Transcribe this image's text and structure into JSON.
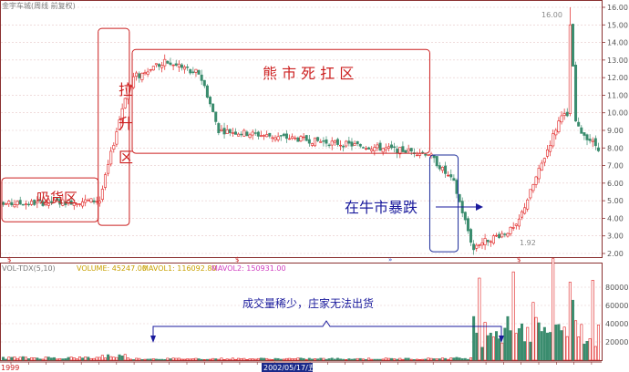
{
  "header": {
    "title": "金宇车城(周线 前复权)"
  },
  "volume_header": {
    "indicator": "VOL-TDX(5,10)",
    "volume": "VOLUME: 45247.00",
    "mavol1": "MAVOL1: 116092.80",
    "mavol2": "MAVOL2: 150931.00"
  },
  "annotations": {
    "accumulation": "吸货区",
    "lift": [
      "拉",
      "升",
      "区"
    ],
    "bear": "熊 市 死 扛 区",
    "crash": "在牛市暴跌",
    "volume_note": "成交量稀少，庄家无法出货",
    "peak_label": "16.00",
    "low_label": "1.92"
  },
  "bottom_axis": {
    "start_year": "1999",
    "date_box": "2002/05/17/五"
  },
  "colors": {
    "up": "#e02020",
    "down": "#3a8c6e",
    "box_red": "#cc2020",
    "box_blue": "#1c2c9a",
    "text_blue": "#1a1a9c",
    "vol_header_yellow": "#c8a000",
    "vol_header_pink": "#d040c0"
  },
  "chart_data": [
    {
      "type": "candlestick",
      "title": "金宇车城(周线 前复权)",
      "ylim": [
        2.0,
        16.0
      ],
      "y_ticks": [
        "2.00",
        "3.00",
        "4.00",
        "5.00",
        "6.00",
        "7.00",
        "8.00",
        "9.00",
        "10.00",
        "11.00",
        "12.00",
        "13.00",
        "14.00",
        "15.00",
        "16.00"
      ],
      "grid": true,
      "segments": [
        {
          "from_index": 0,
          "to_index": 33,
          "price_start": 4.8,
          "price_end": 5.0,
          "level": 4.8
        },
        {
          "from_index": 34,
          "to_index": 44,
          "price_start": 5.0,
          "price_end": 11.6,
          "level": 8.0
        },
        {
          "from_index": 45,
          "to_index": 75,
          "price_start": 11.5,
          "price_end": 10.8,
          "level": 12.0
        },
        {
          "from_index": 76,
          "to_index": 150,
          "price_start": 9.0,
          "price_end": 7.7,
          "level": 8.5
        },
        {
          "from_index": 151,
          "to_index": 158,
          "price_start": 7.5,
          "price_end": 6.2,
          "level": 7.0
        },
        {
          "from_index": 159,
          "to_index": 166,
          "price_start": 6.0,
          "price_end": 2.2,
          "level": 4.0
        },
        {
          "from_index": 167,
          "to_index": 180,
          "price_start": 2.5,
          "price_end": 3.4,
          "level": 3.0
        },
        {
          "from_index": 181,
          "to_index": 196,
          "price_start": 3.5,
          "price_end": 9.5,
          "level": 6.0
        },
        {
          "from_index": 197,
          "to_index": 210,
          "price_start": 10.0,
          "price_end": 8.0,
          "level": 10.0
        }
      ],
      "peak": {
        "value": 16.0,
        "index": 200
      },
      "low": {
        "value": 1.92,
        "index": 166
      },
      "boxes": [
        {
          "name": "吸货区",
          "x_from": 0,
          "x_to": 33,
          "y_from": 3.8,
          "y_to": 6.3
        },
        {
          "name": "拉升区",
          "x_from": 34,
          "x_to": 44,
          "y_from": 3.6,
          "y_to": 14.8
        },
        {
          "name": "熊市死扛区",
          "x_from": 46,
          "x_to": 150,
          "y_from": 7.7,
          "y_to": 13.6
        },
        {
          "name": "在牛市暴跌",
          "x_from": 151,
          "x_to": 160,
          "y_from": 2.1,
          "y_to": 7.6
        }
      ]
    },
    {
      "type": "bar",
      "title": "VOL-TDX(5,10)",
      "ylim": [
        0,
        95000
      ],
      "y_ticks": [
        "20000",
        "40000",
        "60000",
        "80000"
      ],
      "series": [
        {
          "name": "VOLUME",
          "last": 45247.0
        },
        {
          "name": "MAVOL1",
          "last": 116092.8
        },
        {
          "name": "MAVOL2",
          "last": 150931.0
        }
      ],
      "volume_levels": [
        {
          "from_index": 0,
          "to_index": 33,
          "level": 2500
        },
        {
          "from_index": 34,
          "to_index": 44,
          "level": 4500
        },
        {
          "from_index": 45,
          "to_index": 150,
          "level": 1500
        },
        {
          "from_index": 151,
          "to_index": 165,
          "level": 2000
        },
        {
          "from_index": 166,
          "to_index": 210,
          "level": 35000
        }
      ],
      "volume_peak": 90000
    }
  ]
}
